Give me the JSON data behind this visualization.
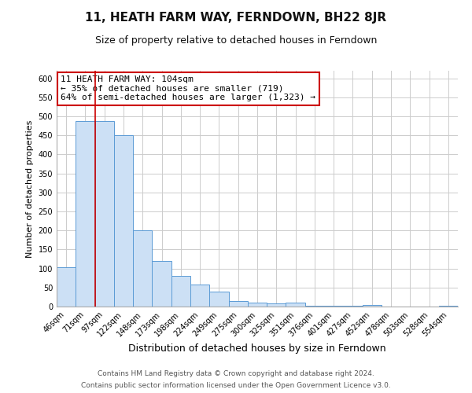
{
  "title": "11, HEATH FARM WAY, FERNDOWN, BH22 8JR",
  "subtitle": "Size of property relative to detached houses in Ferndown",
  "xlabel": "Distribution of detached houses by size in Ferndown",
  "ylabel": "Number of detached properties",
  "categories": [
    "46sqm",
    "71sqm",
    "97sqm",
    "122sqm",
    "148sqm",
    "173sqm",
    "198sqm",
    "224sqm",
    "249sqm",
    "275sqm",
    "300sqm",
    "325sqm",
    "351sqm",
    "376sqm",
    "401sqm",
    "427sqm",
    "452sqm",
    "478sqm",
    "503sqm",
    "528sqm",
    "554sqm"
  ],
  "values": [
    104,
    487,
    487,
    450,
    200,
    120,
    80,
    57,
    40,
    15,
    10,
    9,
    10,
    3,
    2,
    2,
    5,
    1,
    1,
    1,
    3
  ],
  "bar_color": "#cce0f5",
  "bar_edge_color": "#5b9bd5",
  "annotation_box_text": "11 HEATH FARM WAY: 104sqm\n← 35% of detached houses are smaller (719)\n64% of semi-detached houses are larger (1,323) →",
  "annotation_box_color": "#ffffff",
  "annotation_box_edge_color": "#cc0000",
  "property_line_color": "#cc0000",
  "footer_line1": "Contains HM Land Registry data © Crown copyright and database right 2024.",
  "footer_line2": "Contains public sector information licensed under the Open Government Licence v3.0.",
  "ylim": [
    0,
    620
  ],
  "yticks": [
    0,
    50,
    100,
    150,
    200,
    250,
    300,
    350,
    400,
    450,
    500,
    550,
    600
  ],
  "grid_color": "#cccccc",
  "background_color": "#ffffff",
  "title_fontsize": 11,
  "subtitle_fontsize": 9,
  "xlabel_fontsize": 9,
  "ylabel_fontsize": 8,
  "tick_fontsize": 7,
  "annotation_fontsize": 8,
  "footer_fontsize": 6.5
}
